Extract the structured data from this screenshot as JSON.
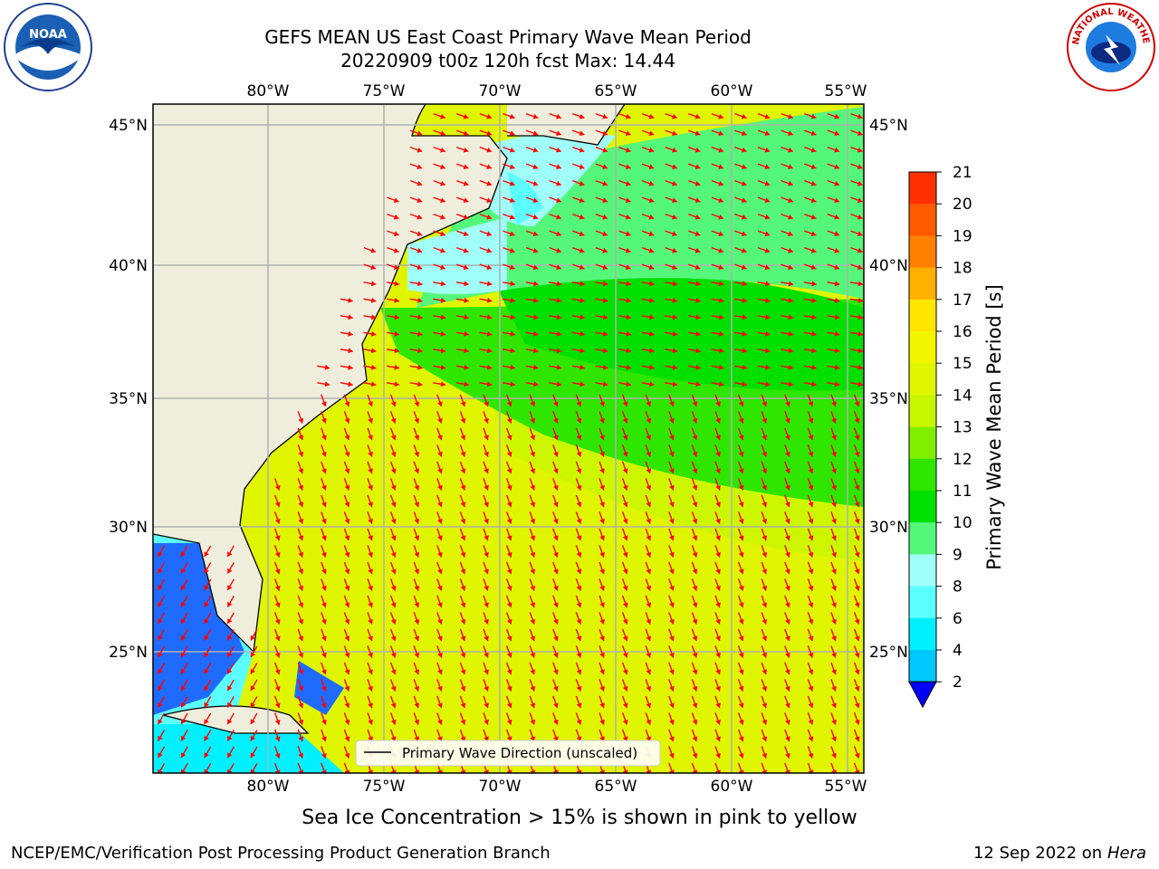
{
  "title": {
    "line1": "GEFS MEAN US East Coast Primary Wave Mean Period",
    "line2": "20220909 t00z 120h fcst   Max: 14.44"
  },
  "map": {
    "lon_ticks": [
      "80°W",
      "75°W",
      "70°W",
      "65°W",
      "60°W",
      "55°W"
    ],
    "lat_ticks": [
      "45°N",
      "40°N",
      "35°N",
      "30°N",
      "25°N"
    ],
    "legend_label": "Primary Wave Direction (unscaled)",
    "arrow_color": "#ff0000"
  },
  "colorbar": {
    "label": "Primary Wave Mean Period [s]",
    "ticks": [
      "21",
      "20",
      "19",
      "18",
      "17",
      "16",
      "15",
      "14",
      "13",
      "12",
      "11",
      "10",
      "9",
      "8",
      "6",
      "4",
      "2"
    ],
    "colors": [
      "#ff0000",
      "#ff3000",
      "#ff5a00",
      "#ff8000",
      "#ffb000",
      "#ffe600",
      "#f2f500",
      "#e0f500",
      "#c8f500",
      "#80f000",
      "#2ee600",
      "#00e000",
      "#55f77a",
      "#a0fff8",
      "#5cffff",
      "#00f0ff",
      "#00c8ff",
      "#0064ff",
      "#0000ff"
    ]
  },
  "note": "Sea Ice Concentration > 15% is shown in pink to yellow",
  "footer": {
    "left": "NCEP/EMC/Verification Post Processing Product Generation Branch",
    "date": "12 Sep 2022 on",
    "host": "Hera"
  },
  "logos": {
    "noaa": "NOAA",
    "nws": "NATIONAL WEATHER SERVICE"
  }
}
